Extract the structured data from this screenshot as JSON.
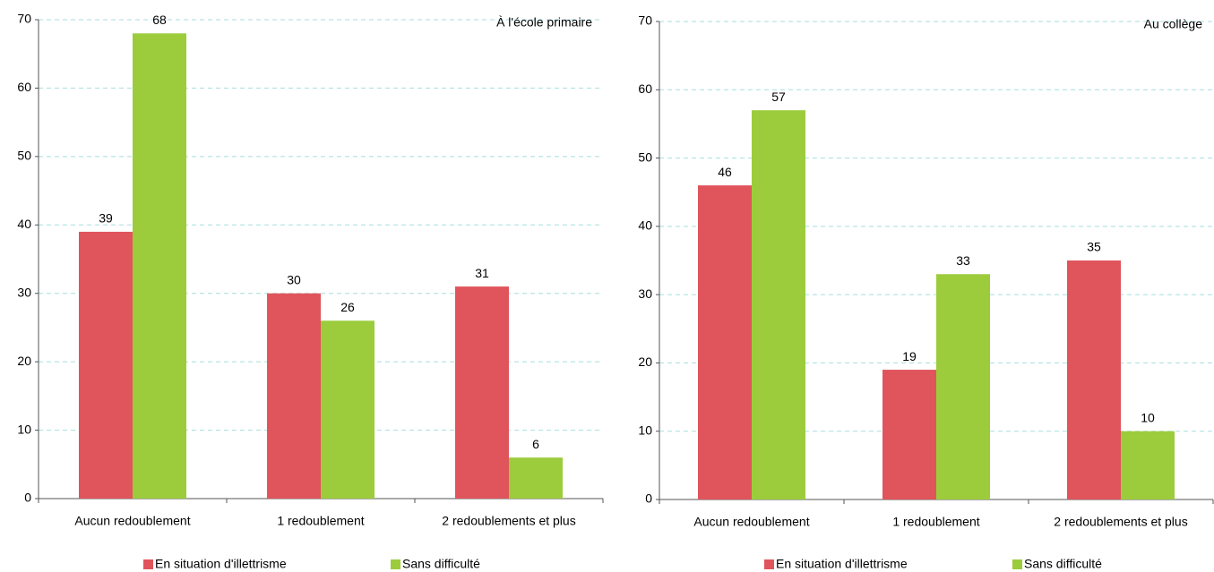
{
  "chart_data": [
    {
      "type": "bar",
      "title": "À l'école primaire",
      "categories": [
        "Aucun redoublement",
        "1 redoublement",
        "2 redoublements et plus"
      ],
      "series": [
        {
          "name": "En situation d'illettrisme",
          "color": "#e0555c",
          "values": [
            39,
            30,
            31
          ]
        },
        {
          "name": "Sans difficulté",
          "color": "#9ccc3c",
          "values": [
            68,
            26,
            6
          ]
        }
      ],
      "ylim": [
        0,
        70
      ],
      "yticks": [
        0,
        10,
        20,
        30,
        40,
        50,
        60,
        70
      ],
      "grid": true
    },
    {
      "type": "bar",
      "title": "Au collège",
      "categories": [
        "Aucun redoublement",
        "1 redoublement",
        "2 redoublements et plus"
      ],
      "series": [
        {
          "name": "En situation d'illettrisme",
          "color": "#e0555c",
          "values": [
            46,
            19,
            35
          ]
        },
        {
          "name": "Sans difficulté",
          "color": "#9ccc3c",
          "values": [
            57,
            33,
            10
          ]
        }
      ],
      "ylim": [
        0,
        70
      ],
      "yticks": [
        0,
        10,
        20,
        30,
        40,
        50,
        60,
        70
      ],
      "grid": true
    }
  ]
}
